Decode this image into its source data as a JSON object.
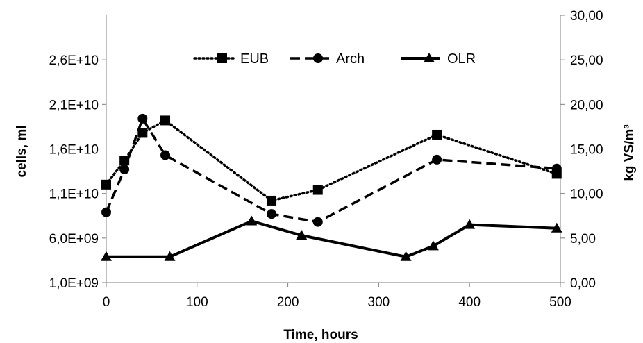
{
  "chart_data": {
    "type": "line",
    "xlabel": "Time, hours",
    "ylabel_left": "cells, ml",
    "ylabel_right": "kg VS/m³",
    "x_ticks": [
      "0",
      "100",
      "200",
      "300",
      "400",
      "500"
    ],
    "y_left_ticks": [
      "1,0E+09",
      "6,0E+09",
      "1,1E+10",
      "1,6E+10",
      "2,1E+10",
      "2,6E+10"
    ],
    "y_right_ticks": [
      "0,00",
      "5,00",
      "10,00",
      "15,00",
      "20,00",
      "25,00",
      "30,00"
    ],
    "xlim": [
      0,
      500
    ],
    "ylim_left": [
      1000000000,
      31000000000
    ],
    "ylim_right": [
      0,
      30
    ],
    "grid": false,
    "legend_position": "top-center",
    "series": [
      {
        "name": "EUB",
        "axis": "left",
        "line_style": "dotted",
        "marker": "square",
        "x": [
          0,
          20,
          40,
          65,
          182,
          233,
          364,
          496
        ],
        "values": [
          12000000000,
          14700000000,
          17800000000,
          19200000000,
          10200000000,
          11400000000,
          17600000000,
          13200000000
        ]
      },
      {
        "name": "Arch",
        "axis": "left",
        "line_style": "dashed",
        "marker": "circle",
        "x": [
          0,
          20,
          40,
          65,
          182,
          233,
          364,
          496
        ],
        "values": [
          8900000000,
          13700000000,
          19400000000,
          15300000000,
          8700000000,
          7800000000,
          14800000000,
          13800000000
        ]
      },
      {
        "name": "OLR",
        "axis": "right",
        "line_style": "solid",
        "marker": "triangle",
        "x": [
          0,
          70,
          160,
          215,
          330,
          360,
          400,
          496
        ],
        "values": [
          2.9,
          2.9,
          6.9,
          5.3,
          2.9,
          4.1,
          6.5,
          6.1
        ]
      }
    ]
  }
}
